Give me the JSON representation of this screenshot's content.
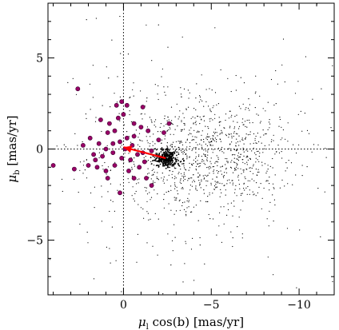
{
  "chart_data": {
    "type": "scatter",
    "title": "",
    "xlabel_parts": {
      "symbol": "μ",
      "sub": "l",
      "rest": " cos(b) [mas/yr]"
    },
    "ylabel_parts": {
      "symbol": "μ",
      "sub": "b",
      "rest": " [mas/yr]"
    },
    "xlim": [
      4.3,
      -12
    ],
    "ylim": [
      -8,
      8
    ],
    "x_inverted": true,
    "x_ticks": [
      0,
      -5,
      -10
    ],
    "x_tick_labels": [
      "0",
      "−5",
      "−10"
    ],
    "y_ticks": [
      -5,
      0,
      5
    ],
    "y_tick_labels": [
      "−5",
      "0",
      "5"
    ],
    "reference_lines": {
      "x0": true,
      "y0": true,
      "style": "dotted"
    },
    "grid": false,
    "legend": "none",
    "colors": {
      "field": "#000000",
      "members": "#990066",
      "members_edge": "#3a0030",
      "vector": "#ff0000",
      "cluster": "#000000"
    },
    "cluster": {
      "x": -2.4,
      "y": -0.5
    },
    "vector": {
      "from": [
        0,
        0.1
      ],
      "to": [
        -2.4,
        -0.5
      ],
      "label": ""
    },
    "members": [
      [
        2.6,
        3.3
      ],
      [
        2.8,
        -1.1
      ],
      [
        1.3,
        1.6
      ],
      [
        0.9,
        0.9
      ],
      [
        0.5,
        1.0
      ],
      [
        0.4,
        2.4
      ],
      [
        0.0,
        1.9
      ],
      [
        -0.2,
        2.4
      ],
      [
        0.1,
        2.6
      ],
      [
        -1.1,
        2.3
      ],
      [
        -0.6,
        1.4
      ],
      [
        -1.0,
        1.2
      ],
      [
        -1.4,
        1.0
      ],
      [
        -2.0,
        0.5
      ],
      [
        -2.3,
        0.9
      ],
      [
        -2.6,
        1.4
      ],
      [
        -0.5,
        0.2
      ],
      [
        -0.2,
        0.6
      ],
      [
        0.2,
        0.4
      ],
      [
        0.6,
        0.3
      ],
      [
        1.0,
        0.0
      ],
      [
        1.4,
        0.3
      ],
      [
        1.9,
        0.6
      ],
      [
        2.3,
        0.2
      ],
      [
        1.7,
        -0.3
      ],
      [
        1.2,
        -0.4
      ],
      [
        0.6,
        -0.2
      ],
      [
        0.1,
        -0.5
      ],
      [
        -0.4,
        -0.6
      ],
      [
        -0.8,
        -0.3
      ],
      [
        -1.2,
        -0.7
      ],
      [
        -1.6,
        -0.1
      ],
      [
        -0.3,
        -1.2
      ],
      [
        -0.9,
        -1.0
      ],
      [
        -1.3,
        -1.6
      ],
      [
        -1.6,
        -2.0
      ],
      [
        -0.6,
        -1.6
      ],
      [
        0.2,
        -2.4
      ],
      [
        1.0,
        -1.2
      ],
      [
        0.5,
        -0.9
      ],
      [
        1.5,
        -1.0
      ],
      [
        2.0,
        -0.9
      ],
      [
        4.0,
        -0.9
      ],
      [
        -0.6,
        0.7
      ],
      [
        0.8,
        1.4
      ],
      [
        1.6,
        -0.6
      ],
      [
        -1.1,
        -0.2
      ],
      [
        -0.1,
        0.0
      ],
      [
        0.3,
        1.7
      ],
      [
        0.9,
        -1.6
      ]
    ],
    "field": {
      "generator": "seeded",
      "seed": 7,
      "n_core": 320,
      "core_center": [
        -2.4,
        -0.5
      ],
      "core_sigma": [
        0.35,
        0.22
      ],
      "n_disc": 900,
      "disc_center": [
        -4.6,
        -0.2
      ],
      "disc_sigma": [
        2.4,
        1.6
      ],
      "n_halo": 320,
      "halo_center": [
        -3.5,
        -0.5
      ],
      "halo_sigma": [
        4.5,
        3.6
      ]
    }
  }
}
